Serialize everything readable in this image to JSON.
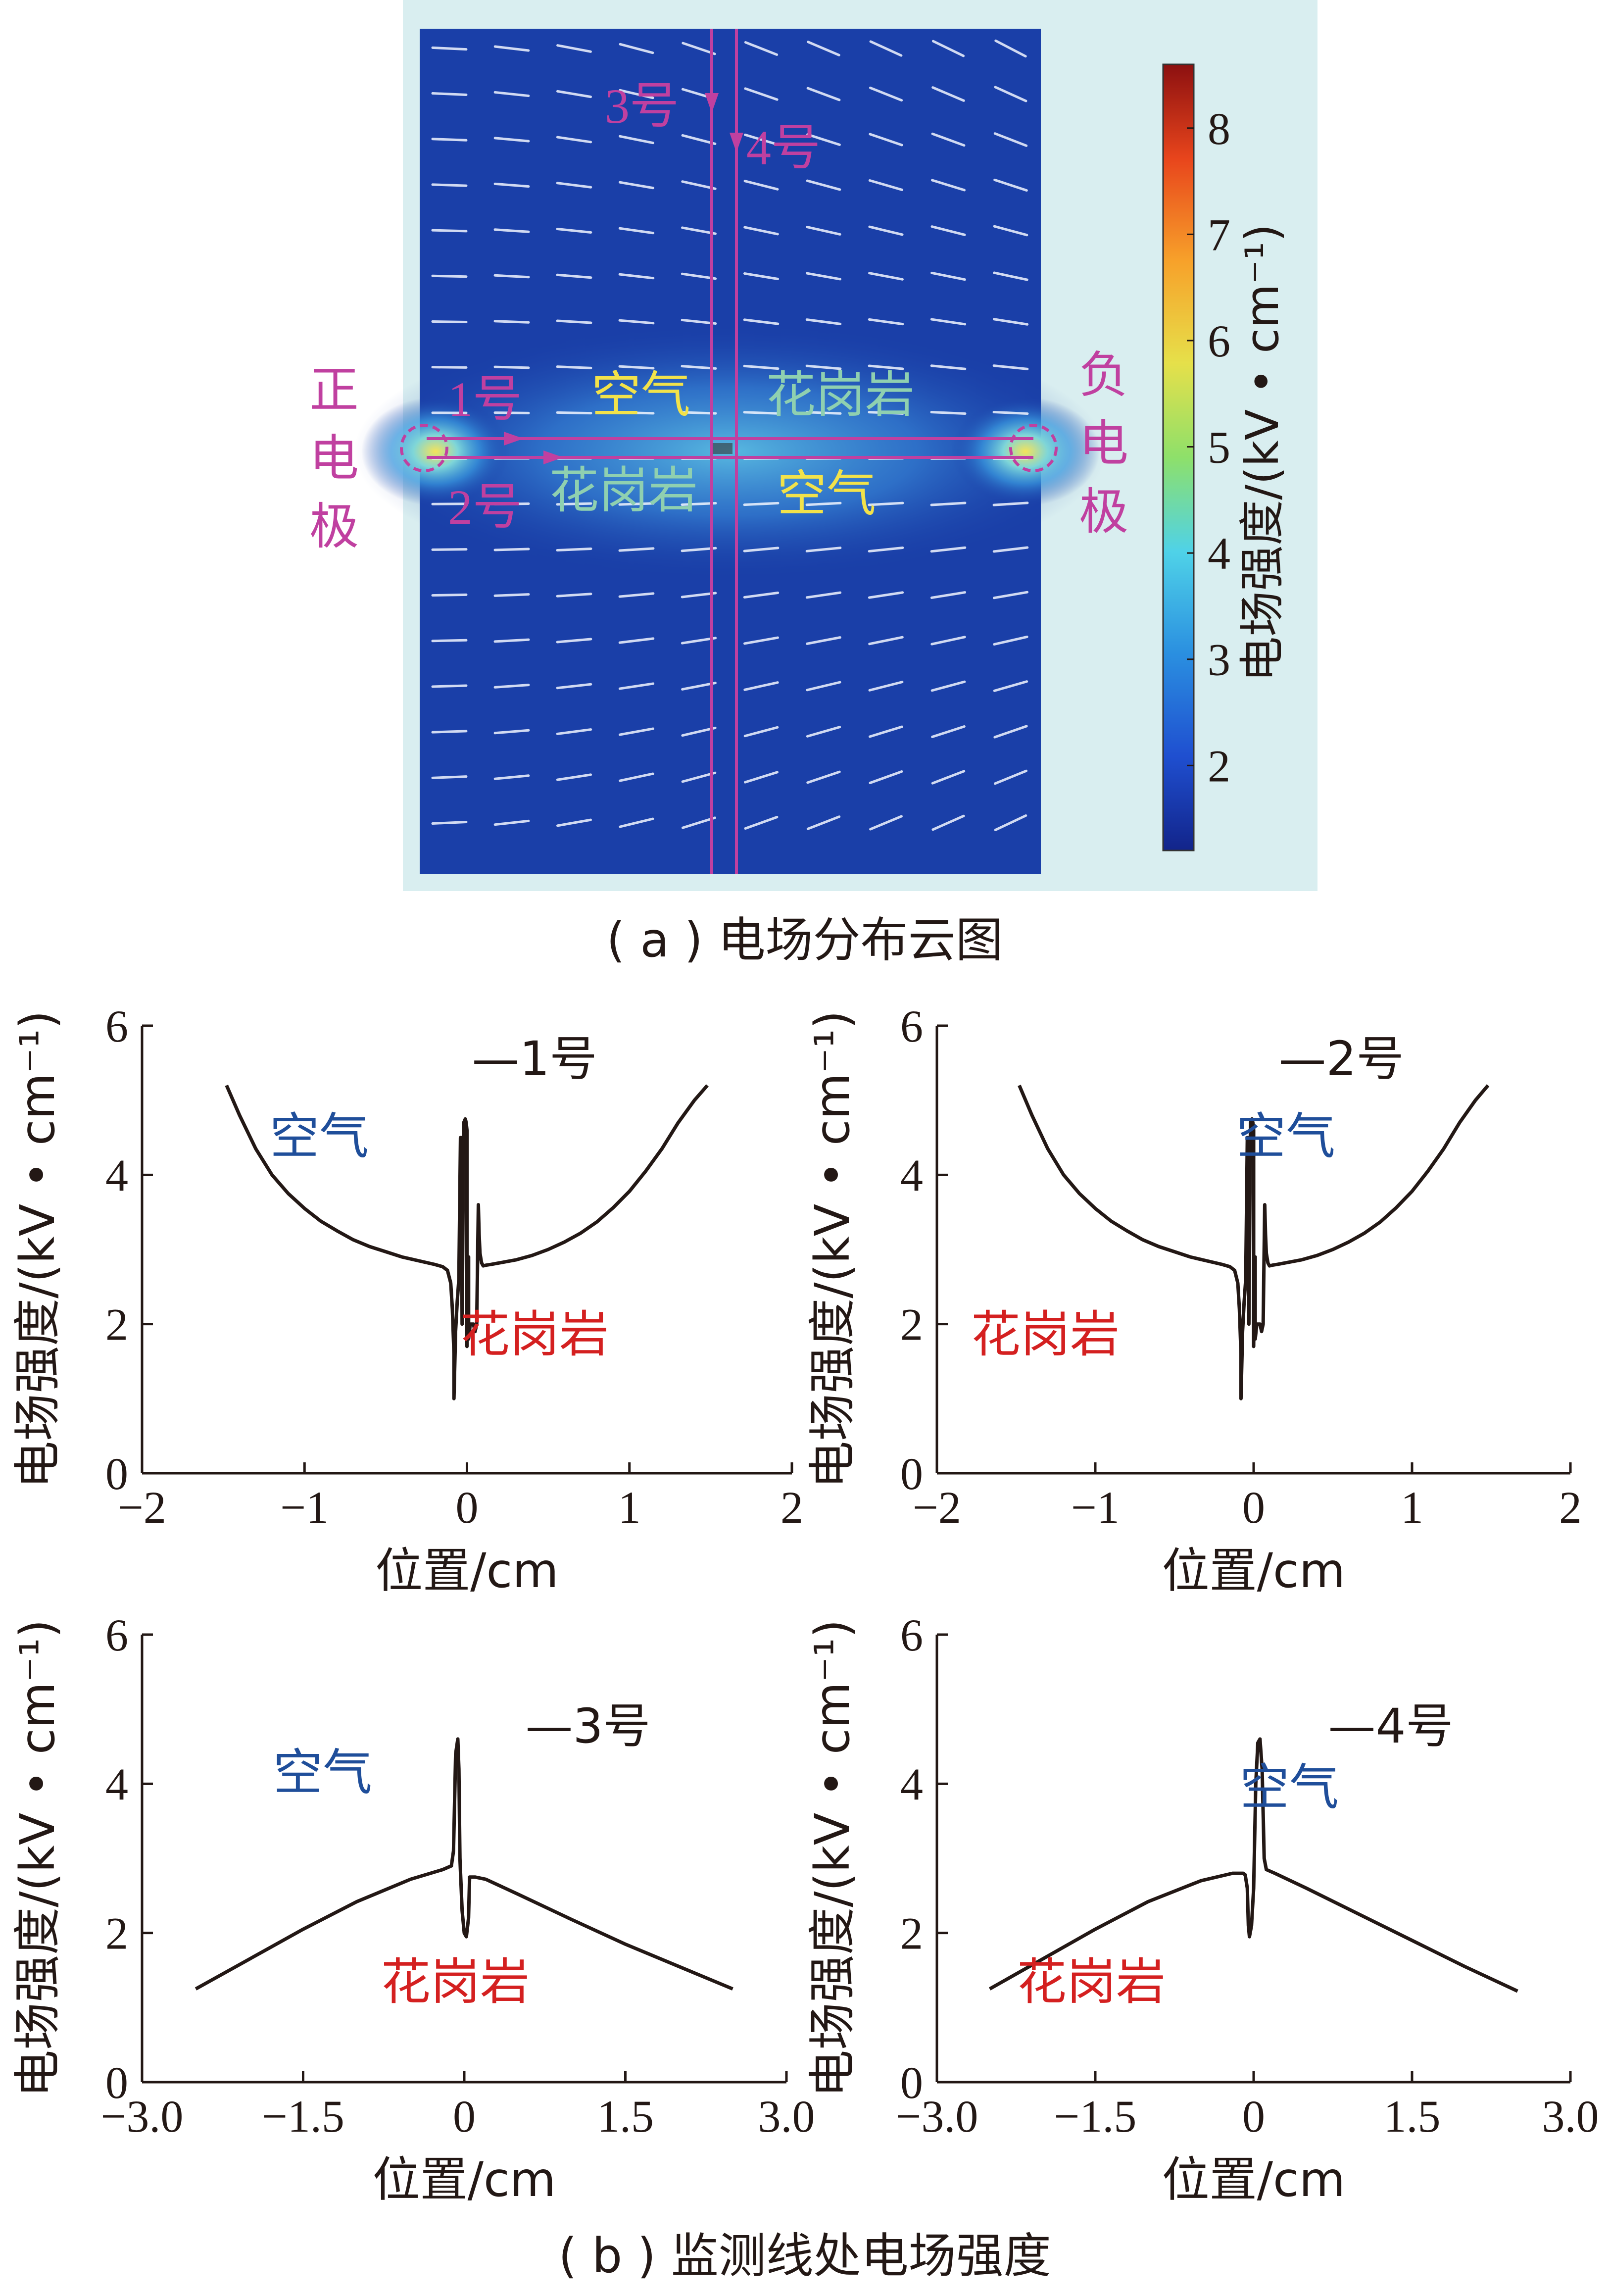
{
  "panel_a": {
    "caption": "( a ) 电场分布云图",
    "line_labels": [
      "3号",
      "4号",
      "1号",
      "2号"
    ],
    "region_labels": {
      "air_top": "空气",
      "granite_top": "花岗岩",
      "granite_bottom": "花岗岩",
      "air_bottom": "空气"
    },
    "electrode_left": [
      "正",
      "电",
      "极"
    ],
    "electrode_right": [
      "负",
      "电",
      "极"
    ],
    "colorbar": {
      "label": "电场强度/(kV • cm⁻¹)",
      "ticks": [
        "2",
        "3",
        "4",
        "5",
        "6",
        "7",
        "8"
      ],
      "min": 1.2,
      "max": 8.6,
      "colors": [
        "#12248a",
        "#1f4fd0",
        "#2a8fe0",
        "#4fd2e8",
        "#8ee06a",
        "#e6e04a",
        "#f7a12a",
        "#e8451c",
        "#8c1010"
      ]
    },
    "colors": {
      "background": "#d9eef0",
      "field_low": "#1a3fa8",
      "monitor_line": "#c040a0",
      "air_text": "#f2e24a",
      "granite_text": "#8fd0b0"
    }
  },
  "panel_b": {
    "caption": "( b ) 监测线处电场强度",
    "colors": {
      "air_label": "#1f4e9a",
      "granite_label": "#d42020",
      "curve": "#231815"
    }
  },
  "chart_data": [
    {
      "type": "line",
      "id": "c1",
      "xlabel": "位置/cm",
      "ylabel": "电场强度/(kV • cm⁻¹)",
      "xlim": [
        -2,
        2
      ],
      "ylim": [
        0,
        6
      ],
      "xticks": [
        "−2",
        "−1",
        "0",
        "1",
        "2"
      ],
      "xtick_values": [
        -2,
        -1,
        0,
        1,
        2
      ],
      "yticks": [
        "0",
        "2",
        "4",
        "6"
      ],
      "ytick_values": [
        0,
        2,
        4,
        6
      ],
      "legend": "—1号",
      "air_label": "空气",
      "granite_label": "花岗岩",
      "series": [
        {
          "name": "1号",
          "x": [
            -1.48,
            -1.4,
            -1.3,
            -1.2,
            -1.1,
            -1.0,
            -0.9,
            -0.8,
            -0.7,
            -0.6,
            -0.5,
            -0.4,
            -0.3,
            -0.2,
            -0.15,
            -0.12,
            -0.1,
            -0.09,
            -0.08,
            -0.08,
            -0.07,
            -0.06,
            -0.05,
            -0.04,
            -0.035,
            -0.03,
            -0.02,
            -0.01,
            -0.005,
            0.0,
            0.0,
            0.005,
            0.01,
            0.01,
            0.02,
            0.04,
            0.05,
            0.06,
            0.07,
            0.07,
            0.075,
            0.08,
            0.09,
            0.1,
            0.12,
            0.15,
            0.2,
            0.3,
            0.4,
            0.5,
            0.6,
            0.7,
            0.8,
            0.9,
            1.0,
            1.1,
            1.2,
            1.3,
            1.4,
            1.48
          ],
          "y": [
            5.2,
            4.8,
            4.35,
            4.0,
            3.75,
            3.55,
            3.38,
            3.25,
            3.13,
            3.04,
            2.97,
            2.9,
            2.85,
            2.8,
            2.77,
            2.72,
            2.55,
            2.2,
            1.6,
            1.0,
            1.9,
            2.3,
            2.6,
            4.5,
            4.5,
            2.0,
            4.7,
            4.75,
            4.7,
            4.6,
            1.7,
            2.9,
            2.9,
            1.8,
            2.0,
            2.0,
            1.9,
            2.0,
            3.6,
            3.6,
            3.2,
            2.95,
            2.82,
            2.78,
            2.79,
            2.8,
            2.82,
            2.86,
            2.92,
            3.0,
            3.1,
            3.22,
            3.37,
            3.56,
            3.78,
            4.05,
            4.35,
            4.7,
            5.0,
            5.2
          ]
        }
      ]
    },
    {
      "type": "line",
      "id": "c2",
      "xlabel": "位置/cm",
      "ylabel": "电场强度/(kV • cm⁻¹)",
      "xlim": [
        -2,
        2
      ],
      "ylim": [
        0,
        6
      ],
      "xticks": [
        "−2",
        "−1",
        "0",
        "1",
        "2"
      ],
      "xtick_values": [
        -2,
        -1,
        0,
        1,
        2
      ],
      "yticks": [
        "0",
        "2",
        "4",
        "6"
      ],
      "ytick_values": [
        0,
        2,
        4,
        6
      ],
      "legend": "—2号",
      "air_label": "空气",
      "granite_label": "花岗岩",
      "series": [
        {
          "name": "2号",
          "x": [
            -1.48,
            -1.4,
            -1.3,
            -1.2,
            -1.1,
            -1.0,
            -0.9,
            -0.8,
            -0.7,
            -0.6,
            -0.5,
            -0.4,
            -0.3,
            -0.2,
            -0.15,
            -0.12,
            -0.1,
            -0.09,
            -0.08,
            -0.08,
            -0.07,
            -0.06,
            -0.05,
            -0.04,
            -0.035,
            -0.03,
            -0.02,
            -0.01,
            -0.005,
            0.0,
            0.0,
            0.005,
            0.01,
            0.01,
            0.02,
            0.04,
            0.05,
            0.06,
            0.07,
            0.07,
            0.075,
            0.08,
            0.09,
            0.1,
            0.12,
            0.15,
            0.2,
            0.3,
            0.4,
            0.5,
            0.6,
            0.7,
            0.8,
            0.9,
            1.0,
            1.1,
            1.2,
            1.3,
            1.4,
            1.48
          ],
          "y": [
            5.2,
            4.8,
            4.35,
            4.0,
            3.75,
            3.55,
            3.38,
            3.25,
            3.13,
            3.04,
            2.97,
            2.9,
            2.85,
            2.8,
            2.77,
            2.72,
            2.55,
            2.2,
            1.6,
            1.0,
            1.9,
            2.3,
            2.6,
            4.5,
            4.5,
            2.0,
            4.7,
            4.75,
            4.7,
            4.6,
            1.7,
            2.9,
            2.9,
            1.8,
            2.0,
            2.0,
            1.9,
            2.0,
            3.6,
            3.6,
            3.2,
            2.95,
            2.82,
            2.78,
            2.79,
            2.8,
            2.82,
            2.86,
            2.92,
            3.0,
            3.1,
            3.22,
            3.37,
            3.56,
            3.78,
            4.05,
            4.35,
            4.7,
            5.0,
            5.2
          ]
        }
      ]
    },
    {
      "type": "line",
      "id": "c3",
      "xlabel": "位置/cm",
      "ylabel": "电场强度/(kV • cm⁻¹)",
      "xlim": [
        -3,
        3
      ],
      "ylim": [
        0,
        6
      ],
      "xticks": [
        "−3.0",
        "−1.5",
        "0",
        "1.5",
        "3.0"
      ],
      "xtick_values": [
        -3,
        -1.5,
        0,
        1.5,
        3
      ],
      "yticks": [
        "0",
        "2",
        "4",
        "6"
      ],
      "ytick_values": [
        0,
        2,
        4,
        6
      ],
      "legend": "—3号",
      "air_label": "空气",
      "granite_label": "花岗岩",
      "series": [
        {
          "name": "3号",
          "x": [
            -2.5,
            -2.0,
            -1.5,
            -1.0,
            -0.5,
            -0.2,
            -0.12,
            -0.1,
            -0.08,
            -0.06,
            -0.05,
            -0.04,
            -0.02,
            0.0,
            0.02,
            0.04,
            0.05,
            0.06,
            0.1,
            0.2,
            0.5,
            1.0,
            1.5,
            2.0,
            2.5
          ],
          "y": [
            1.25,
            1.65,
            2.05,
            2.42,
            2.72,
            2.85,
            2.9,
            3.1,
            4.4,
            4.6,
            4.2,
            3.0,
            2.3,
            2.0,
            1.95,
            2.2,
            2.75,
            2.75,
            2.75,
            2.72,
            2.52,
            2.18,
            1.85,
            1.55,
            1.25
          ]
        }
      ]
    },
    {
      "type": "line",
      "id": "c4",
      "xlabel": "位置/cm",
      "ylabel": "电场强度/(kV • cm⁻¹)",
      "xlim": [
        -3,
        3
      ],
      "ylim": [
        0,
        6
      ],
      "xticks": [
        "−3.0",
        "−1.5",
        "0",
        "1.5",
        "3.0"
      ],
      "xtick_values": [
        -3,
        -1.5,
        0,
        1.5,
        3
      ],
      "yticks": [
        "0",
        "2",
        "4",
        "6"
      ],
      "ytick_values": [
        0,
        2,
        4,
        6
      ],
      "legend": "—4号",
      "air_label": "空气",
      "granite_label": "花岗岩",
      "series": [
        {
          "name": "4号",
          "x": [
            -2.5,
            -2.0,
            -1.5,
            -1.0,
            -0.5,
            -0.2,
            -0.1,
            -0.08,
            -0.06,
            -0.05,
            -0.04,
            -0.02,
            0.0,
            0.02,
            0.04,
            0.06,
            0.08,
            0.1,
            0.12,
            0.2,
            0.5,
            1.0,
            1.5,
            2.0,
            2.5
          ],
          "y": [
            1.25,
            1.65,
            2.05,
            2.42,
            2.7,
            2.8,
            2.8,
            2.78,
            2.6,
            2.1,
            1.95,
            2.1,
            2.6,
            4.0,
            4.55,
            4.6,
            4.2,
            3.0,
            2.85,
            2.8,
            2.6,
            2.25,
            1.9,
            1.55,
            1.22
          ]
        }
      ]
    }
  ]
}
